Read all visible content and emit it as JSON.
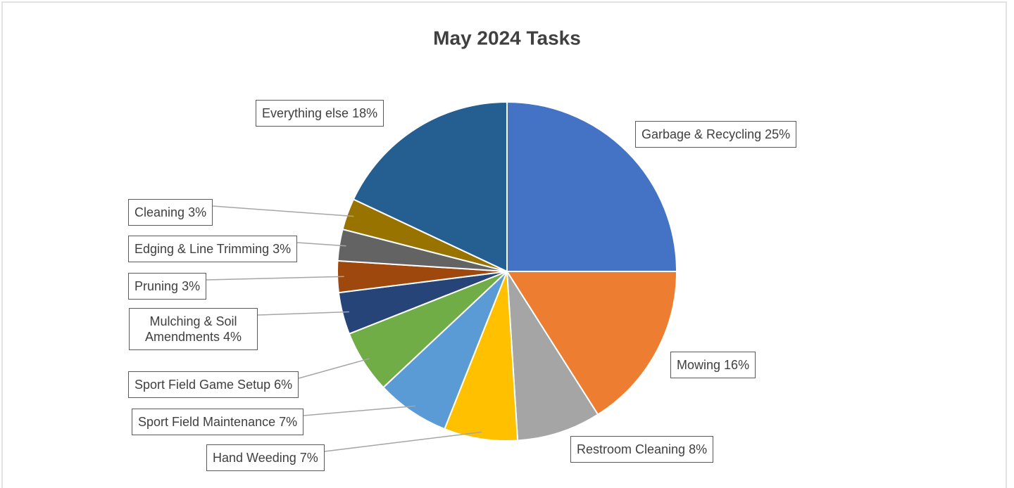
{
  "chart_data": {
    "type": "pie",
    "title": "May 2024 Tasks",
    "categories": [
      "Garbage & Recycling",
      "Mowing",
      "Restroom Cleaning",
      "Hand Weeding",
      "Sport Field Maintenance",
      "Sport Field Game Setup",
      "Mulching & Soil Amendments",
      "Pruning",
      "Edging & Line Trimming",
      "Cleaning",
      "Everything else"
    ],
    "values": [
      25,
      16,
      8,
      7,
      7,
      6,
      4,
      3,
      3,
      3,
      18
    ],
    "value_labels": [
      "25%",
      "16%",
      "8%",
      "7%",
      "7%",
      "6%",
      "4%",
      "3%",
      "3%",
      "3%",
      "18%"
    ],
    "colors": [
      "#4472c4",
      "#ed7d31",
      "#a5a5a5",
      "#ffc000",
      "#5b9bd5",
      "#70ad47",
      "#264478",
      "#9e480e",
      "#636363",
      "#997300",
      "#255e91"
    ]
  }
}
